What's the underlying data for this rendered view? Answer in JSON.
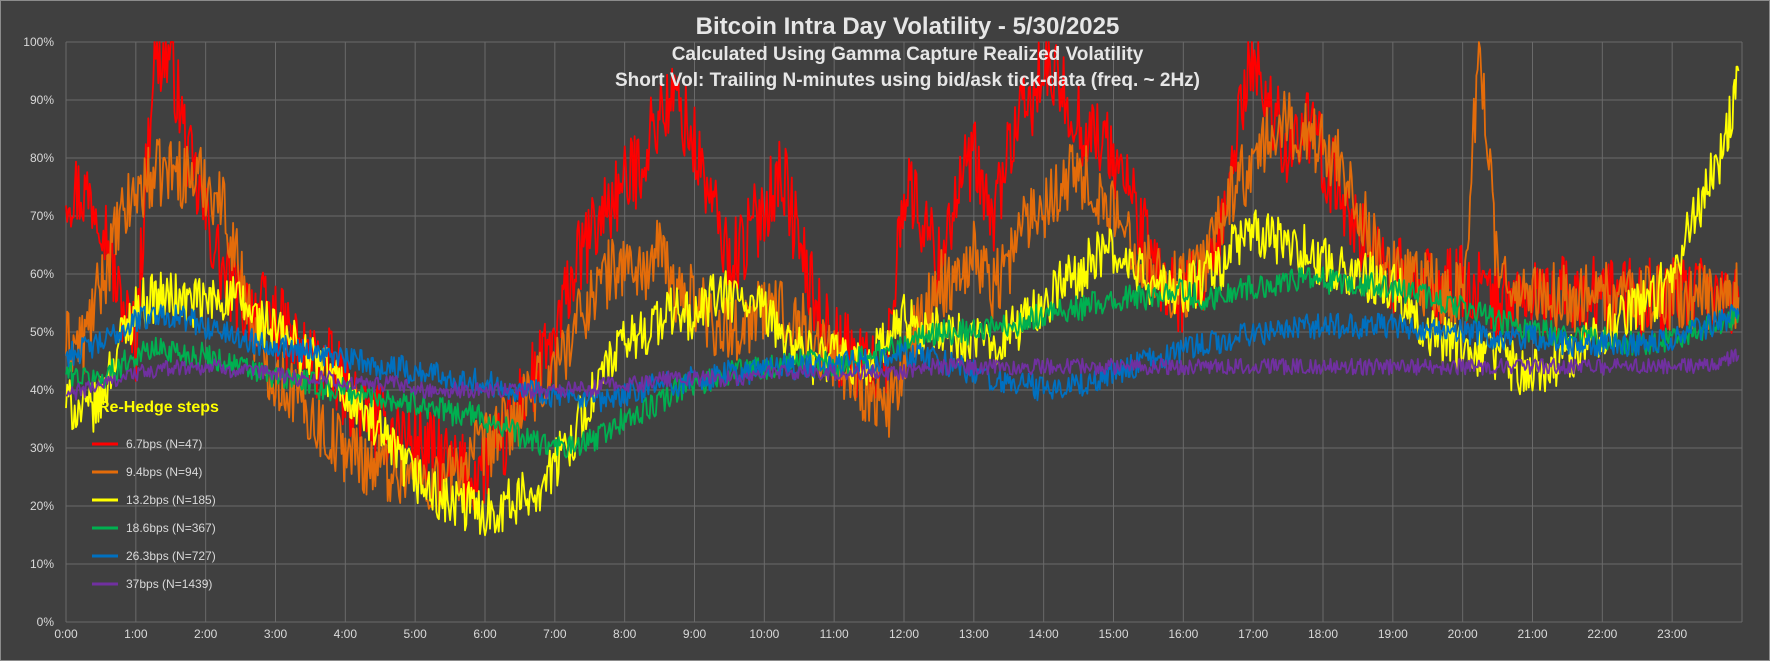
{
  "chart_data": {
    "type": "line",
    "title": "Bitcoin Intra Day Volatility - 5/30/2025",
    "subtitles": [
      "Calculated Using Gamma Capture Realized Volatility",
      "Short Vol: Trailing N-minutes using bid/ask tick-data (freq. ~ 2Hz)"
    ],
    "xlabel": "",
    "ylabel": "",
    "xlim": [
      0,
      24
    ],
    "ylim": [
      0,
      100
    ],
    "grid": true,
    "background": "#404040",
    "x_ticks": [
      "0:00",
      "1:00",
      "2:00",
      "3:00",
      "4:00",
      "5:00",
      "6:00",
      "7:00",
      "8:00",
      "9:00",
      "10:00",
      "11:00",
      "12:00",
      "13:00",
      "14:00",
      "15:00",
      "16:00",
      "17:00",
      "18:00",
      "19:00",
      "20:00",
      "21:00",
      "22:00",
      "23:00"
    ],
    "y_ticks": [
      "0%",
      "10%",
      "20%",
      "30%",
      "40%",
      "50%",
      "60%",
      "70%",
      "80%",
      "90%",
      "100%"
    ],
    "legend": {
      "title": "Re-Hedge steps",
      "position": "left-bottom"
    },
    "x": [
      0,
      0.25,
      0.5,
      0.75,
      1,
      1.25,
      1.5,
      1.75,
      2,
      2.25,
      2.5,
      2.75,
      3,
      3.25,
      3.5,
      3.75,
      4,
      4.25,
      4.5,
      4.75,
      5,
      5.25,
      5.5,
      5.75,
      6,
      6.25,
      6.5,
      6.75,
      7,
      7.25,
      7.5,
      7.75,
      8,
      8.25,
      8.5,
      8.75,
      9,
      9.25,
      9.5,
      9.75,
      10,
      10.25,
      10.5,
      10.75,
      11,
      11.25,
      11.5,
      11.75,
      12,
      12.25,
      12.5,
      12.75,
      13,
      13.25,
      13.5,
      13.75,
      14,
      14.25,
      14.5,
      14.75,
      15,
      15.25,
      15.5,
      15.75,
      16,
      16.25,
      16.5,
      16.75,
      17,
      17.25,
      17.5,
      17.75,
      18,
      18.25,
      18.5,
      18.75,
      19,
      19.25,
      19.5,
      19.75,
      20,
      20.25,
      20.5,
      20.75,
      21,
      21.25,
      21.5,
      21.75,
      22,
      22.25,
      22.5,
      22.75,
      23,
      23.25,
      23.5,
      23.75,
      23.95
    ],
    "series": [
      {
        "name": "6.7bps (N=47)",
        "color": "#ff0000",
        "values": [
          75,
          74,
          72,
          56,
          48,
          97,
          98,
          80,
          70,
          60,
          55,
          54,
          52,
          48,
          45,
          44,
          40,
          36,
          34,
          33,
          31,
          29,
          27,
          25,
          27,
          30,
          38,
          43,
          48,
          60,
          66,
          72,
          75,
          80,
          88,
          90,
          82,
          72,
          62,
          66,
          72,
          78,
          65,
          54,
          48,
          46,
          44,
          44,
          76,
          70,
          62,
          74,
          80,
          68,
          82,
          88,
          95,
          92,
          86,
          84,
          80,
          74,
          64,
          58,
          56,
          58,
          62,
          84,
          98,
          88,
          82,
          86,
          80,
          74,
          68,
          64,
          60,
          58,
          58,
          58,
          58,
          57,
          56,
          56,
          56,
          56,
          56,
          56,
          56,
          56,
          56,
          56,
          56,
          56,
          56,
          56,
          56
        ]
      },
      {
        "name": "9.4bps (N=94)",
        "color": "#e46c0a",
        "values": [
          48,
          48,
          58,
          68,
          74,
          77,
          78,
          77,
          76,
          72,
          60,
          48,
          42,
          40,
          36,
          32,
          30,
          28,
          27,
          26,
          25,
          24,
          25,
          28,
          30,
          33,
          36,
          40,
          44,
          50,
          56,
          60,
          62,
          60,
          64,
          56,
          56,
          52,
          50,
          52,
          54,
          54,
          52,
          48,
          46,
          42,
          40,
          36,
          44,
          52,
          58,
          60,
          64,
          58,
          62,
          70,
          72,
          76,
          78,
          74,
          70,
          66,
          62,
          58,
          58,
          60,
          68,
          76,
          78,
          84,
          86,
          84,
          82,
          80,
          72,
          64,
          60,
          58,
          58,
          56,
          56,
          100,
          60,
          56,
          56,
          56,
          56,
          56,
          56,
          56,
          56,
          56,
          56,
          56,
          56,
          56,
          56
        ]
      },
      {
        "name": "13.2bps (N=185)",
        "color": "#ffff00",
        "values": [
          38,
          36,
          38,
          48,
          54,
          56,
          56,
          55,
          55,
          56,
          55,
          52,
          50,
          48,
          46,
          43,
          40,
          36,
          32,
          28,
          25,
          22,
          20,
          20,
          19,
          20,
          21,
          23,
          27,
          32,
          38,
          44,
          48,
          50,
          52,
          54,
          52,
          56,
          56,
          55,
          53,
          50,
          47,
          45,
          46,
          44,
          45,
          48,
          52,
          50,
          50,
          49,
          48,
          48,
          50,
          52,
          55,
          58,
          60,
          63,
          64,
          61,
          59,
          57,
          57,
          59,
          61,
          65,
          67,
          66,
          65,
          64,
          62,
          61,
          60,
          59,
          58,
          55,
          50,
          48,
          47,
          46,
          46,
          44,
          43,
          44,
          46,
          48,
          50,
          52,
          54,
          56,
          60,
          68,
          75,
          82,
          95
        ]
      },
      {
        "name": "18.6bps (N=367)",
        "color": "#00b050",
        "values": [
          43,
          42,
          42,
          44,
          46,
          47,
          47,
          46,
          46,
          45,
          44,
          43,
          42,
          42,
          41,
          40,
          40,
          39,
          39,
          38,
          38,
          37,
          36,
          36,
          35,
          34,
          32,
          31,
          30,
          30,
          31,
          33,
          35,
          36,
          38,
          40,
          41,
          42,
          43,
          44,
          44,
          44,
          45,
          45,
          44,
          45,
          46,
          47,
          48,
          49,
          50,
          50,
          50,
          51,
          51,
          52,
          53,
          54,
          54,
          55,
          55,
          56,
          56,
          57,
          57,
          56,
          56,
          57,
          58,
          58,
          59,
          59,
          59,
          58,
          58,
          58,
          57,
          57,
          56,
          55,
          54,
          53,
          52,
          51,
          50,
          50,
          49,
          49,
          49,
          48,
          48,
          48,
          49,
          50,
          51,
          52,
          53
        ]
      },
      {
        "name": "26.3bps (N=727)",
        "color": "#0070c0",
        "values": [
          46,
          47,
          48,
          50,
          52,
          53,
          53,
          52,
          51,
          50,
          49,
          48,
          48,
          47,
          47,
          46,
          45,
          45,
          44,
          44,
          43,
          43,
          42,
          42,
          41,
          41,
          40,
          40,
          39,
          38,
          38,
          38,
          39,
          40,
          41,
          41,
          42,
          42,
          43,
          43,
          44,
          44,
          44,
          44,
          44,
          45,
          45,
          45,
          46,
          46,
          45,
          44,
          43,
          42,
          41,
          41,
          40,
          40,
          41,
          42,
          43,
          44,
          45,
          46,
          47,
          48,
          48,
          49,
          50,
          50,
          50,
          51,
          51,
          51,
          51,
          51,
          51,
          51,
          50,
          50,
          50,
          50,
          49,
          49,
          49,
          49,
          48,
          48,
          48,
          48,
          48,
          48,
          49,
          50,
          51,
          52,
          53
        ]
      },
      {
        "name": "37bps (N=1439)",
        "color": "#7030a0",
        "values": [
          39,
          40,
          41,
          42,
          43,
          43,
          44,
          44,
          44,
          44,
          43,
          43,
          43,
          42,
          42,
          42,
          41,
          41,
          41,
          41,
          40,
          40,
          40,
          40,
          40,
          40,
          40,
          40,
          40,
          40,
          40,
          41,
          41,
          41,
          42,
          42,
          42,
          42,
          42,
          42,
          43,
          43,
          43,
          43,
          43,
          43,
          43,
          43,
          43,
          44,
          44,
          44,
          44,
          44,
          44,
          44,
          44,
          44,
          44,
          44,
          44,
          44,
          44,
          44,
          44,
          44,
          44,
          44,
          44,
          44,
          44,
          44,
          44,
          44,
          44,
          44,
          44,
          44,
          44,
          44,
          44,
          44,
          44,
          44,
          44,
          44,
          44,
          44,
          44,
          44,
          44,
          44,
          44,
          44,
          44,
          45,
          46
        ]
      }
    ]
  }
}
